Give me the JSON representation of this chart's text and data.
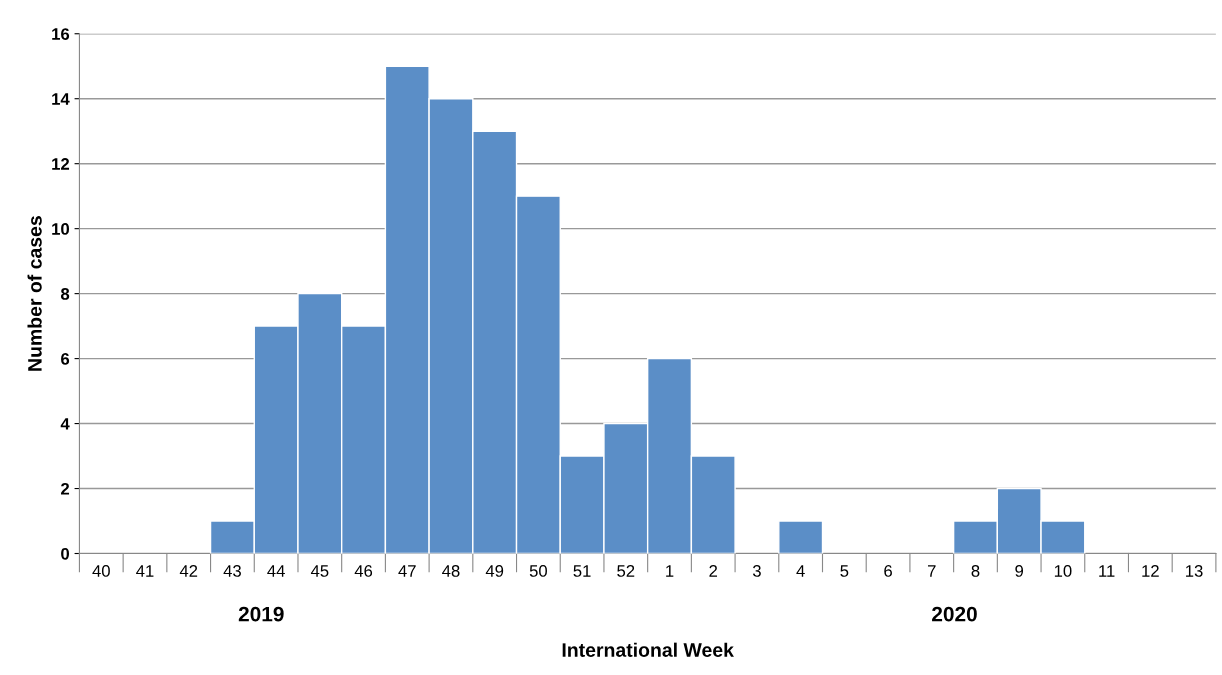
{
  "chart_data": {
    "type": "bar",
    "xlabel": "International Week",
    "ylabel": "Number of cases",
    "categories": [
      "40",
      "41",
      "42",
      "43",
      "44",
      "45",
      "46",
      "47",
      "48",
      "49",
      "50",
      "51",
      "52",
      "1",
      "2",
      "3",
      "4",
      "5",
      "6",
      "7",
      "8",
      "9",
      "10",
      "11",
      "12",
      "13"
    ],
    "values": [
      0,
      0,
      0,
      1,
      7,
      8,
      7,
      15,
      14,
      13,
      11,
      3,
      4,
      6,
      3,
      0,
      1,
      0,
      0,
      0,
      1,
      2,
      1,
      0,
      0,
      0
    ],
    "color": "#5b8ec7",
    "ylim": [
      0,
      16
    ],
    "yticks": [
      0,
      2,
      4,
      6,
      8,
      10,
      12,
      14,
      16
    ],
    "grid": "y",
    "annotations": [
      "2019",
      "2020"
    ]
  }
}
